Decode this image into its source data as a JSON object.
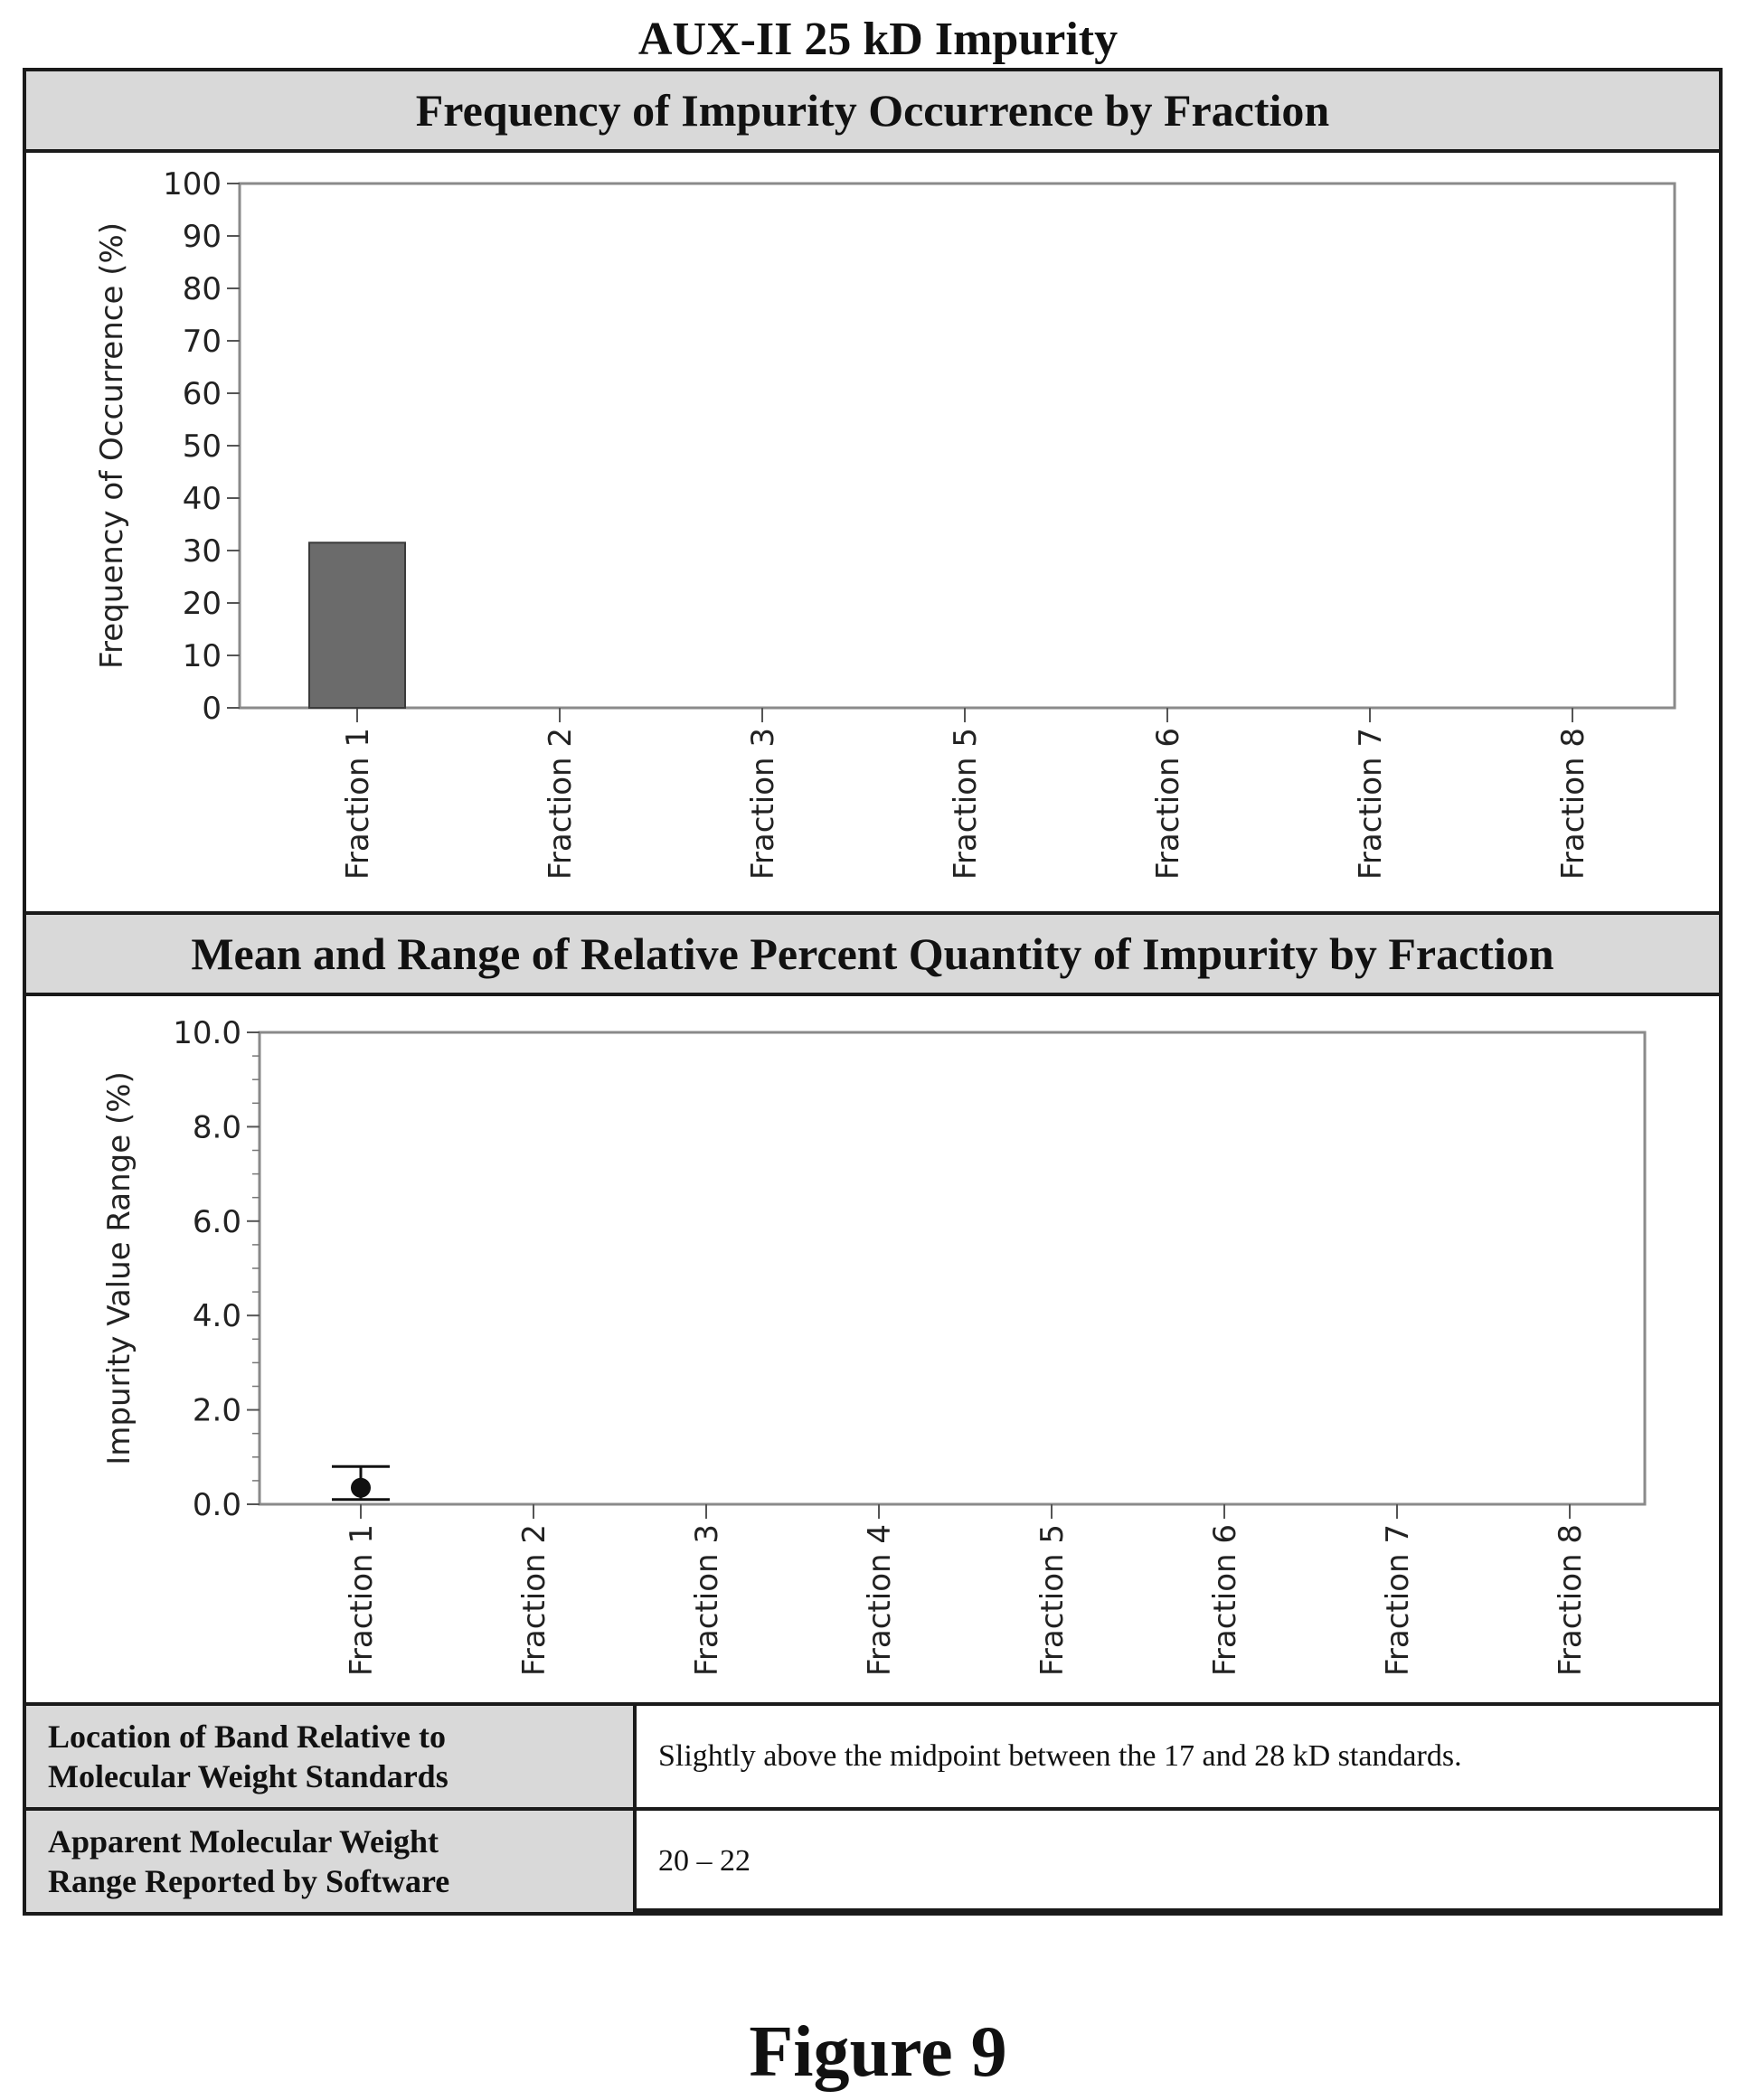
{
  "figure": {
    "title": "AUX-II 25 kD Impurity",
    "label": "Figure 9"
  },
  "sections": {
    "frequency_header": "Frequency of Impurity Occurrence by Fraction",
    "quantity_header": "Mean and Range of Relative Percent Quantity of Impurity by Fraction"
  },
  "info_table": {
    "rows": [
      {
        "label_line1": "Location of Band Relative to",
        "label_line2": "Molecular Weight Standards",
        "value": "Slightly above the midpoint between the 17 and 28 kD standards."
      },
      {
        "label_line1": "Apparent Molecular Weight",
        "label_line2": "Range Reported by Software",
        "value": "20 – 22"
      }
    ]
  },
  "chart_data": [
    {
      "type": "bar",
      "title": "Frequency of Impurity Occurrence by Fraction",
      "ylabel": "Frequency of Occurrence (%)",
      "xlabel": "",
      "categories": [
        "Fraction 1",
        "Fraction 2",
        "Fraction 3",
        "Fraction 5",
        "Fraction 6",
        "Fraction 7",
        "Fraction 8"
      ],
      "values": [
        31.5,
        0,
        0,
        0,
        0,
        0,
        0
      ],
      "ylim": [
        0,
        100
      ],
      "yticks": [
        "0",
        "10",
        "20",
        "30",
        "40",
        "50",
        "60",
        "70",
        "80",
        "90",
        "100"
      ],
      "bar_color": "#6b6b6b",
      "grid": false
    },
    {
      "type": "scatter",
      "title": "Mean and Range of Relative Percent Quantity of Impurity by Fraction",
      "ylabel": "Impurity Value Range (%)",
      "xlabel": "",
      "categories": [
        "Fraction 1",
        "Fraction 2",
        "Fraction 3",
        "Fraction 4",
        "Fraction 5",
        "Fraction 6",
        "Fraction 7",
        "Fraction 8"
      ],
      "mean": [
        0.35,
        null,
        null,
        null,
        null,
        null,
        null,
        null
      ],
      "range_min": [
        0.1,
        null,
        null,
        null,
        null,
        null,
        null,
        null
      ],
      "range_max": [
        0.8,
        null,
        null,
        null,
        null,
        null,
        null,
        null
      ],
      "ylim": [
        0,
        10
      ],
      "yticks": [
        "0.0",
        "2.0",
        "4.0",
        "6.0",
        "8.0",
        "10.0"
      ],
      "point_color": "#111111",
      "grid": false
    }
  ]
}
